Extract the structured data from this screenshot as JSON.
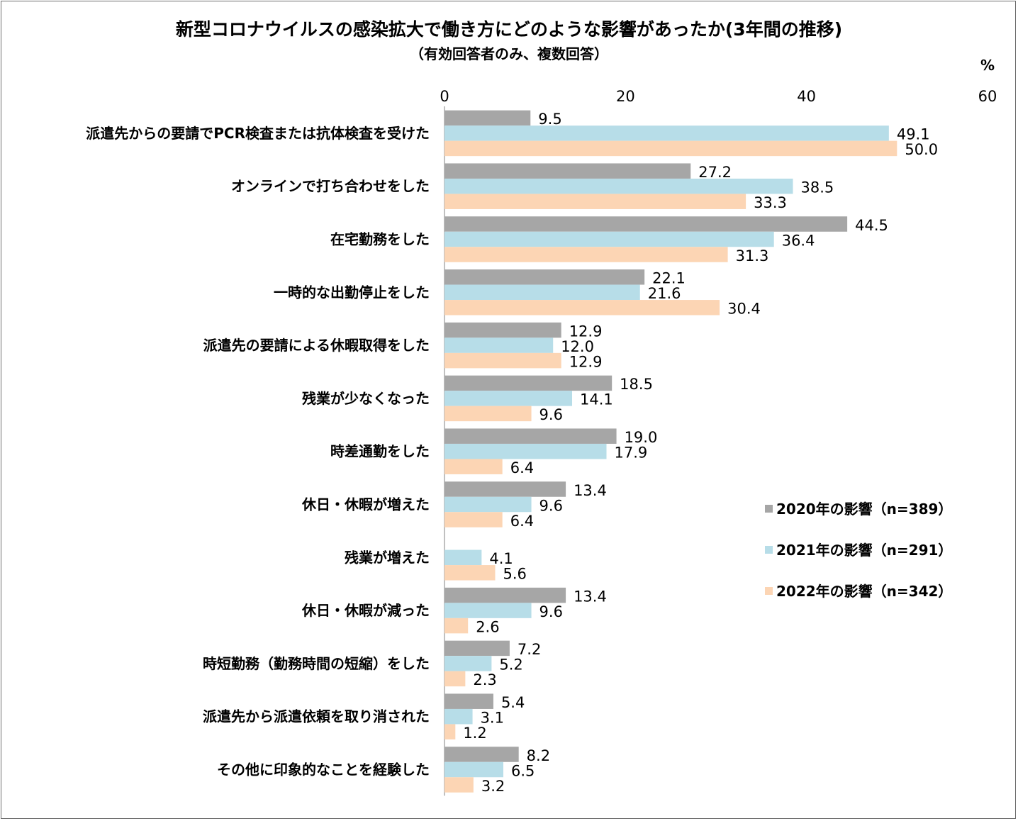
{
  "chart_data": {
    "type": "bar",
    "orientation": "horizontal",
    "title": "新型コロナウイルスの感染拡大で働き方にどのような影響があったか(3年間の推移)",
    "subtitle": "（有効回答者のみ、複数回答）",
    "unit": "%",
    "xlim": [
      0,
      60
    ],
    "xticks": [
      "0",
      "20",
      "40",
      "60"
    ],
    "legend_position": "right",
    "categories": [
      "派遣先からの要請でPCR検査または抗体検査を受けた",
      "オンラインで打ち合わせをした",
      "在宅勤務をした",
      "一時的な出勤停止をした",
      "派遣先の要請による休暇取得をした",
      "残業が少なくなった",
      "時差通勤をした",
      "休日・休暇が増えた",
      "残業が増えた",
      "休日・休暇が減った",
      "時短勤務（勤務時間の短縮）をした",
      "派遣先から派遣依頼を取り消された",
      "その他に印象的なことを経験した"
    ],
    "series": [
      {
        "name": "2020年の影響（n=389）",
        "color": "#a6a6a6",
        "values": [
          "9.5",
          "27.2",
          "44.5",
          "22.1",
          "12.9",
          "18.5",
          "19.0",
          "13.4",
          null,
          "13.4",
          "7.2",
          "5.4",
          "8.2"
        ]
      },
      {
        "name": "2021年の影響（n=291）",
        "color": "#b7dde8",
        "values": [
          "49.1",
          "38.5",
          "36.4",
          "21.6",
          "12.0",
          "14.1",
          "17.9",
          "9.6",
          "4.1",
          "9.6",
          "5.2",
          "3.1",
          "6.5"
        ]
      },
      {
        "name": "2022年の影響（n=342）",
        "color": "#fcd5b4",
        "values": [
          "50.0",
          "33.3",
          "31.3",
          "30.4",
          "12.9",
          "9.6",
          "6.4",
          "6.4",
          "5.6",
          "2.6",
          "2.3",
          "1.2",
          "3.2"
        ]
      }
    ]
  }
}
